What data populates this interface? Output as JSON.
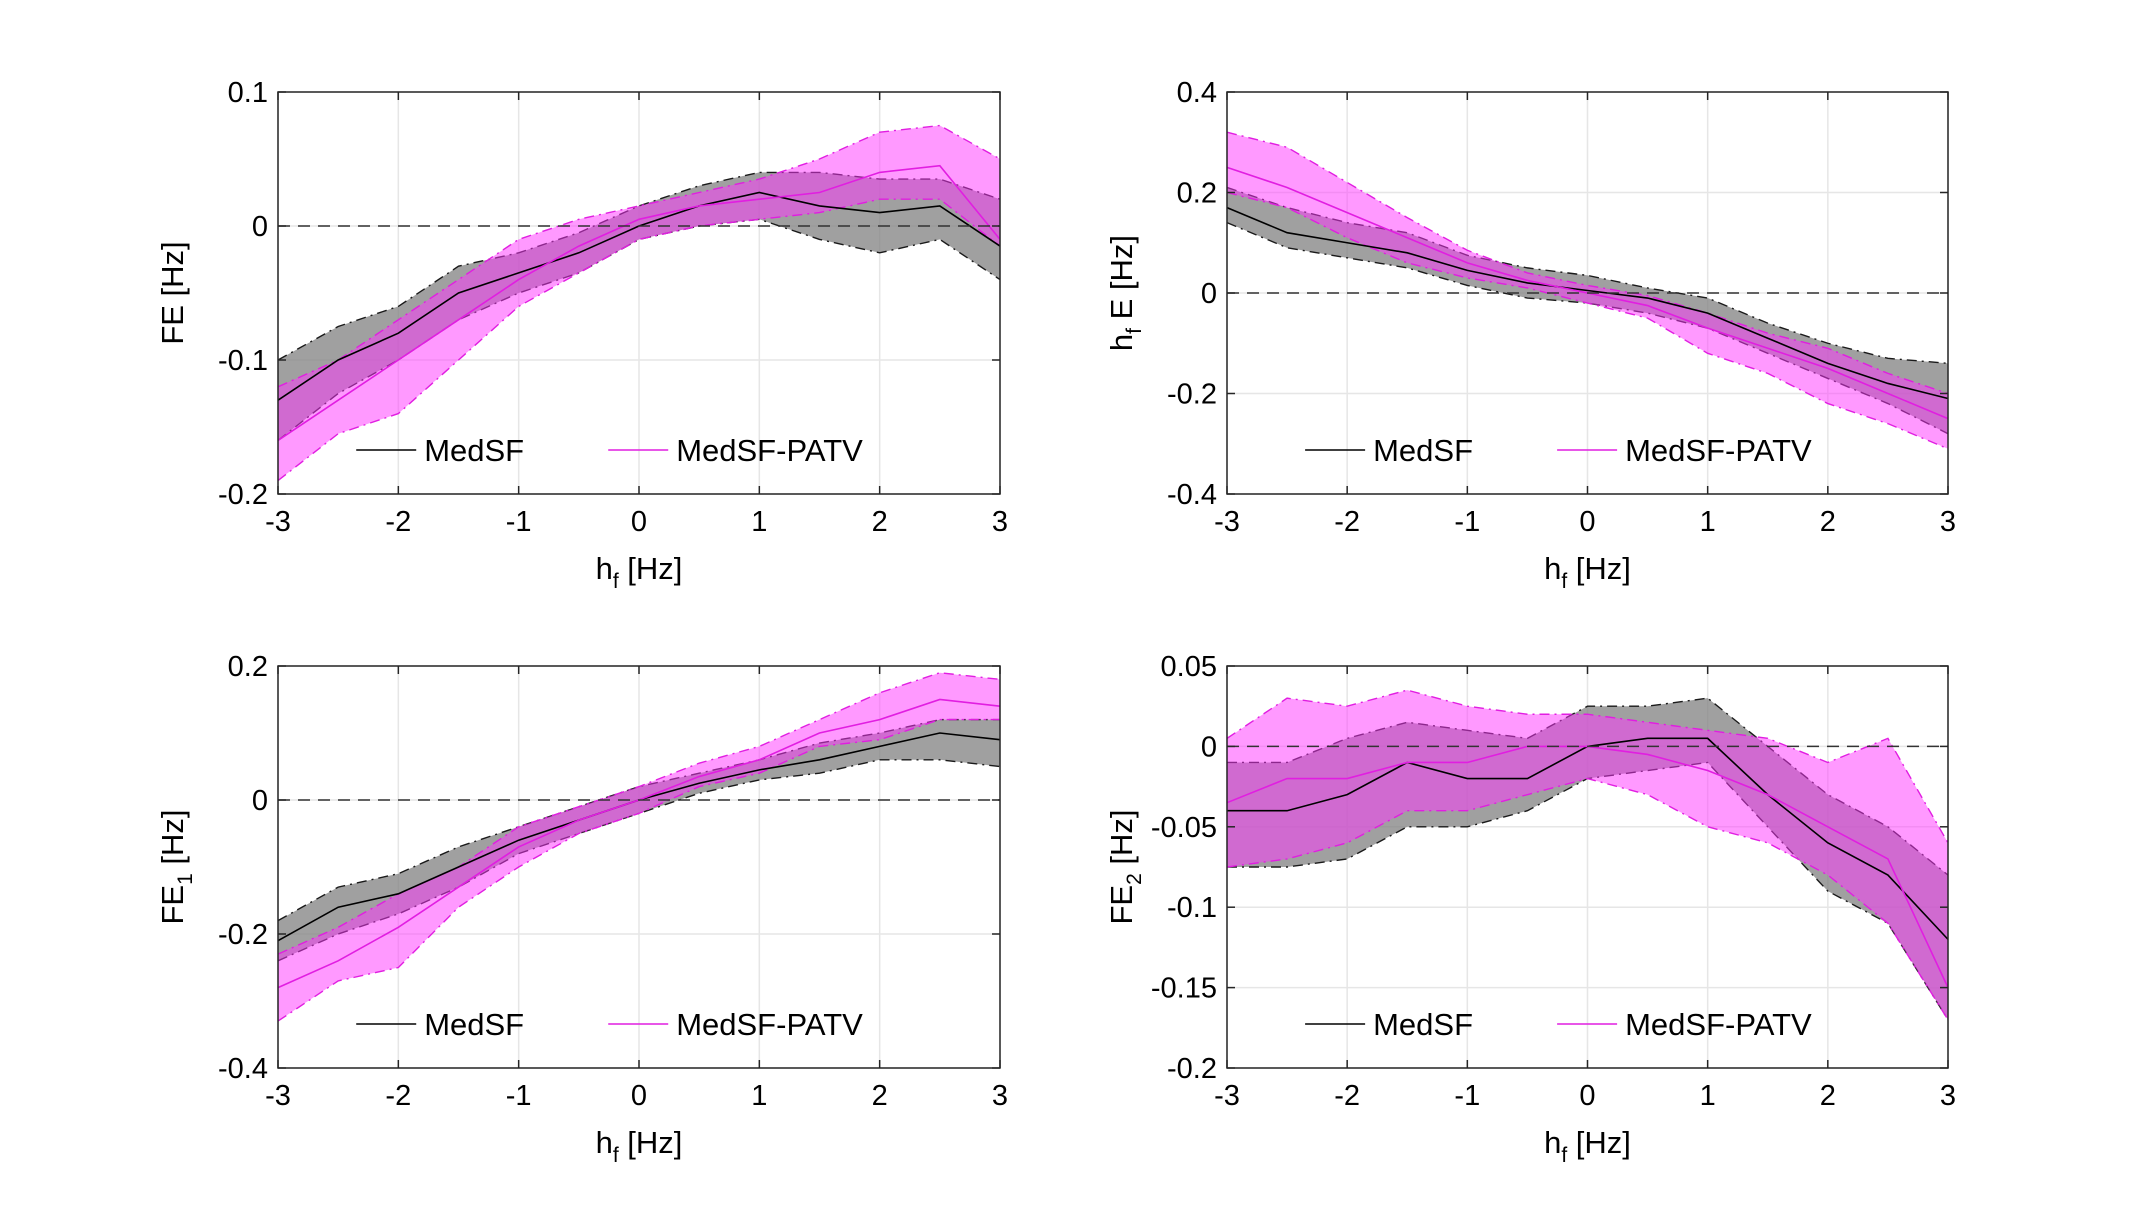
{
  "colors": {
    "medsf": "#000000",
    "medsf_band": "#808080",
    "patv": "#e11ee1",
    "patv_band": "#ff33ff"
  },
  "chart_data": [
    {
      "type": "line",
      "panel": "top-left",
      "xlabel": "h_f [Hz]",
      "ylabel": "FE [Hz]",
      "xlim": [
        -3,
        3
      ],
      "ylim": [
        -0.2,
        0.1
      ],
      "xticks": [
        -3,
        -2,
        -1,
        0,
        1,
        2,
        3
      ],
      "yticks": [
        -0.2,
        -0.1,
        0,
        0.1
      ],
      "ytick_labels": [
        "-0.2",
        "-0.1",
        "0",
        "0.1"
      ],
      "grid": true,
      "zero_line": true,
      "legend": {
        "placement": "bottom",
        "entries": [
          "MedSF",
          "MedSF-PATV"
        ]
      },
      "x": [
        -3,
        -2.5,
        -2,
        -1.5,
        -1,
        -0.5,
        0,
        0.5,
        1,
        1.5,
        2,
        2.5,
        3
      ],
      "series": [
        {
          "name": "MedSF",
          "values": [
            -0.13,
            -0.1,
            -0.08,
            -0.05,
            -0.035,
            -0.02,
            0.0,
            0.015,
            0.025,
            0.015,
            0.01,
            0.015,
            -0.015
          ],
          "lower": [
            -0.16,
            -0.125,
            -0.1,
            -0.07,
            -0.05,
            -0.035,
            -0.01,
            0.0,
            0.005,
            -0.01,
            -0.02,
            -0.01,
            -0.04
          ],
          "upper": [
            -0.1,
            -0.075,
            -0.06,
            -0.03,
            -0.02,
            -0.005,
            0.015,
            0.03,
            0.04,
            0.04,
            0.035,
            0.035,
            0.02
          ]
        },
        {
          "name": "MedSF-PATV",
          "values": [
            -0.16,
            -0.13,
            -0.1,
            -0.07,
            -0.04,
            -0.015,
            0.005,
            0.015,
            0.02,
            0.025,
            0.04,
            0.045,
            -0.01
          ],
          "lower": [
            -0.19,
            -0.155,
            -0.14,
            -0.1,
            -0.06,
            -0.035,
            -0.01,
            0.0,
            0.005,
            0.01,
            0.02,
            0.02,
            -0.015
          ],
          "upper": [
            -0.12,
            -0.1,
            -0.07,
            -0.04,
            -0.01,
            0.005,
            0.015,
            0.025,
            0.035,
            0.05,
            0.07,
            0.075,
            0.05
          ]
        }
      ]
    },
    {
      "type": "line",
      "panel": "top-right",
      "xlabel": "h_f [Hz]",
      "ylabel": "h_f E [Hz]",
      "xlim": [
        -3,
        3
      ],
      "ylim": [
        -0.4,
        0.4
      ],
      "xticks": [
        -3,
        -2,
        -1,
        0,
        1,
        2,
        3
      ],
      "yticks": [
        -0.4,
        -0.2,
        0,
        0.2,
        0.4
      ],
      "ytick_labels": [
        "-0.4",
        "-0.2",
        "0",
        "0.2",
        "0.4"
      ],
      "grid": true,
      "zero_line": true,
      "legend": {
        "placement": "bottom",
        "entries": [
          "MedSF",
          "MedSF-PATV"
        ]
      },
      "x": [
        -3,
        -2.5,
        -2,
        -1.5,
        -1,
        -0.5,
        0,
        0.5,
        1,
        1.5,
        2,
        2.5,
        3
      ],
      "series": [
        {
          "name": "MedSF",
          "values": [
            0.17,
            0.12,
            0.1,
            0.08,
            0.045,
            0.02,
            0.005,
            -0.01,
            -0.04,
            -0.09,
            -0.14,
            -0.18,
            -0.21
          ],
          "lower": [
            0.14,
            0.09,
            0.07,
            0.05,
            0.015,
            -0.01,
            -0.02,
            -0.04,
            -0.07,
            -0.12,
            -0.17,
            -0.22,
            -0.28
          ],
          "upper": [
            0.21,
            0.17,
            0.14,
            0.12,
            0.075,
            0.05,
            0.035,
            0.01,
            -0.01,
            -0.06,
            -0.1,
            -0.13,
            -0.14
          ]
        },
        {
          "name": "MedSF-PATV",
          "values": [
            0.25,
            0.21,
            0.16,
            0.11,
            0.06,
            0.025,
            0.0,
            -0.025,
            -0.07,
            -0.11,
            -0.15,
            -0.2,
            -0.25
          ],
          "lower": [
            0.2,
            0.17,
            0.11,
            0.06,
            0.03,
            0.01,
            -0.02,
            -0.05,
            -0.12,
            -0.16,
            -0.22,
            -0.26,
            -0.31
          ],
          "upper": [
            0.32,
            0.29,
            0.22,
            0.15,
            0.085,
            0.04,
            0.015,
            -0.005,
            -0.04,
            -0.08,
            -0.11,
            -0.16,
            -0.2
          ]
        }
      ]
    },
    {
      "type": "line",
      "panel": "bottom-left",
      "xlabel": "h_f [Hz]",
      "ylabel": "FE_1 [Hz]",
      "xlim": [
        -3,
        3
      ],
      "ylim": [
        -0.4,
        0.2
      ],
      "xticks": [
        -3,
        -2,
        -1,
        0,
        1,
        2,
        3
      ],
      "yticks": [
        -0.4,
        -0.2,
        0,
        0.2
      ],
      "ytick_labels": [
        "-0.4",
        "-0.2",
        "0",
        "0.2"
      ],
      "grid": true,
      "zero_line": true,
      "legend": {
        "placement": "bottom",
        "entries": [
          "MedSF",
          "MedSF-PATV"
        ]
      },
      "x": [
        -3,
        -2.5,
        -2,
        -1.5,
        -1,
        -0.5,
        0,
        0.5,
        1,
        1.5,
        2,
        2.5,
        3
      ],
      "series": [
        {
          "name": "MedSF",
          "values": [
            -0.21,
            -0.16,
            -0.14,
            -0.1,
            -0.06,
            -0.03,
            0.0,
            0.025,
            0.045,
            0.06,
            0.08,
            0.1,
            0.09
          ],
          "lower": [
            -0.24,
            -0.2,
            -0.17,
            -0.13,
            -0.08,
            -0.05,
            -0.02,
            0.01,
            0.03,
            0.04,
            0.06,
            0.06,
            0.05
          ],
          "upper": [
            -0.18,
            -0.13,
            -0.11,
            -0.07,
            -0.04,
            -0.01,
            0.02,
            0.04,
            0.06,
            0.085,
            0.1,
            0.12,
            0.12
          ]
        },
        {
          "name": "MedSF-PATV",
          "values": [
            -0.28,
            -0.24,
            -0.19,
            -0.13,
            -0.07,
            -0.03,
            0.0,
            0.035,
            0.06,
            0.1,
            0.12,
            0.15,
            0.14
          ],
          "lower": [
            -0.33,
            -0.27,
            -0.25,
            -0.16,
            -0.1,
            -0.05,
            -0.02,
            0.02,
            0.04,
            0.08,
            0.09,
            0.12,
            0.12
          ],
          "upper": [
            -0.23,
            -0.19,
            -0.14,
            -0.1,
            -0.04,
            -0.01,
            0.02,
            0.055,
            0.08,
            0.12,
            0.16,
            0.19,
            0.18
          ]
        }
      ]
    },
    {
      "type": "line",
      "panel": "bottom-right",
      "xlabel": "h_f [Hz]",
      "ylabel": "FE_2 [Hz]",
      "xlim": [
        -3,
        3
      ],
      "ylim": [
        -0.2,
        0.05
      ],
      "xticks": [
        -3,
        -2,
        -1,
        0,
        1,
        2,
        3
      ],
      "yticks": [
        -0.2,
        -0.15,
        -0.1,
        -0.05,
        0,
        0.05
      ],
      "ytick_labels": [
        "-0.2",
        "-0.15",
        "-0.1",
        "-0.05",
        "0",
        "0.05"
      ],
      "grid": true,
      "zero_line": true,
      "legend": {
        "placement": "bottom",
        "entries": [
          "MedSF",
          "MedSF-PATV"
        ]
      },
      "x": [
        -3,
        -2.5,
        -2,
        -1.5,
        -1,
        -0.5,
        0,
        0.5,
        1,
        1.5,
        2,
        2.5,
        3
      ],
      "series": [
        {
          "name": "MedSF",
          "values": [
            -0.04,
            -0.04,
            -0.03,
            -0.01,
            -0.02,
            -0.02,
            0.0,
            0.005,
            0.005,
            -0.03,
            -0.06,
            -0.08,
            -0.12
          ],
          "lower": [
            -0.075,
            -0.075,
            -0.07,
            -0.05,
            -0.05,
            -0.04,
            -0.02,
            -0.015,
            -0.01,
            -0.05,
            -0.09,
            -0.11,
            -0.17
          ],
          "upper": [
            -0.01,
            -0.01,
            0.005,
            0.015,
            0.01,
            0.005,
            0.025,
            0.025,
            0.03,
            0.0,
            -0.03,
            -0.05,
            -0.08
          ]
        },
        {
          "name": "MedSF-PATV",
          "values": [
            -0.035,
            -0.02,
            -0.02,
            -0.01,
            -0.01,
            0.0,
            0.0,
            -0.005,
            -0.015,
            -0.03,
            -0.05,
            -0.07,
            -0.15
          ],
          "lower": [
            -0.075,
            -0.07,
            -0.06,
            -0.04,
            -0.04,
            -0.03,
            -0.02,
            -0.03,
            -0.05,
            -0.06,
            -0.08,
            -0.11,
            -0.17
          ],
          "upper": [
            0.005,
            0.03,
            0.025,
            0.035,
            0.025,
            0.02,
            0.02,
            0.015,
            0.01,
            0.005,
            -0.01,
            0.005,
            -0.06
          ]
        }
      ]
    }
  ]
}
